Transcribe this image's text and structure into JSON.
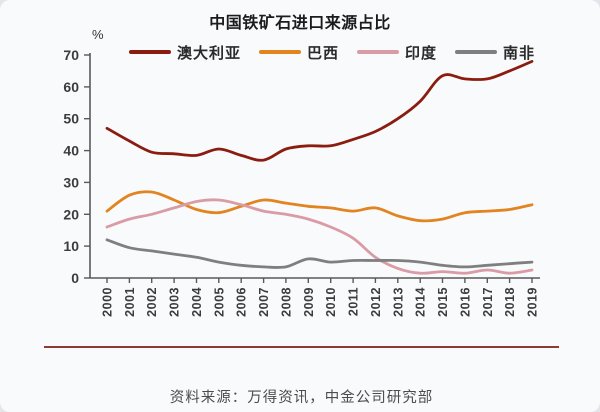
{
  "chart": {
    "title": "中国铁矿石进口来源占比",
    "unit_label": "%",
    "source_note": "资料来源：万得资讯，中金公司研究部"
  },
  "colors": {
    "axis": "#595959",
    "footer_rule": "#8e3b38"
  },
  "chart_data": {
    "type": "line",
    "title": "中国铁矿石进口来源占比",
    "xlabel": "",
    "ylabel": "%",
    "ylim": [
      0,
      70
    ],
    "yticks": [
      0,
      10,
      20,
      30,
      40,
      50,
      60,
      70
    ],
    "grid": false,
    "legend_position": "top",
    "line_style": "smooth",
    "categories": [
      "2000",
      "2001",
      "2002",
      "2003",
      "2004",
      "2005",
      "2006",
      "2007",
      "2008",
      "2009",
      "2010",
      "2011",
      "2012",
      "2013",
      "2014",
      "2015",
      "2016",
      "2017",
      "2018",
      "2019"
    ],
    "series": [
      {
        "name": "澳大利亚",
        "color": "#8a1d10",
        "values": [
          47,
          43,
          39.5,
          39,
          38.5,
          40.5,
          38.5,
          37,
          40.5,
          41.5,
          41.5,
          43.5,
          46,
          50,
          55.5,
          63.5,
          62.5,
          62.5,
          65,
          68
        ]
      },
      {
        "name": "巴西",
        "color": "#e2841f",
        "values": [
          21,
          26,
          27,
          24.5,
          21.5,
          20.5,
          22.5,
          24.5,
          23.5,
          22.5,
          22,
          21,
          22,
          19.5,
          18,
          18.5,
          20.5,
          21,
          21.5,
          23
        ]
      },
      {
        "name": "印度",
        "color": "#d99ca6",
        "values": [
          16,
          18.5,
          20,
          22,
          24,
          24.5,
          23,
          21,
          20,
          18.5,
          16,
          12.5,
          6.5,
          3,
          1.5,
          2,
          1.5,
          2.5,
          1.5,
          2.5
        ]
      },
      {
        "name": "南非",
        "color": "#7f7f7f",
        "values": [
          12,
          9.5,
          8.5,
          7.5,
          6.5,
          5,
          4,
          3.5,
          3.5,
          6,
          5,
          5.5,
          5.5,
          5.5,
          5,
          4,
          3.5,
          4,
          4.5,
          5
        ]
      }
    ]
  }
}
